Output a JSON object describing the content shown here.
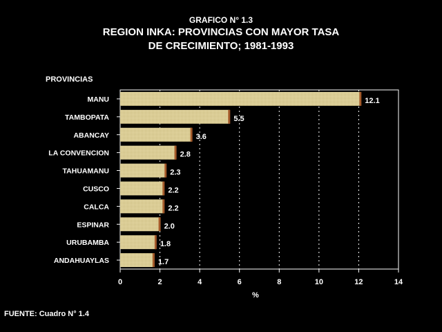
{
  "chart_data": {
    "type": "bar",
    "orientation": "horizontal",
    "title": "GRAFICO N° 1.3",
    "subtitle_line1": "REGION INKA: PROVINCIAS CON MAYOR TASA",
    "subtitle_line2": "DE CRECIMIENTO; 1981-1993",
    "category_axis_title": "PROVINCIAS",
    "xlabel": "%",
    "source": "FUENTE: Cuadro N° 1.4",
    "categories": [
      "MANU",
      "TAMBOPATA",
      "ABANCAY",
      "LA CONVENCION",
      "TAHUAMANU",
      "CUSCO",
      "CALCA",
      "ESPINAR",
      "URUBAMBA",
      "ANDAHUAYLAS"
    ],
    "values": [
      12.1,
      5.5,
      3.6,
      2.8,
      2.3,
      2.2,
      2.2,
      2.0,
      1.8,
      1.7
    ],
    "value_labels": [
      "12.1",
      "5.5",
      "3.6",
      "2.8",
      "2.3",
      "2.2",
      "2.2",
      "2.0",
      "1.8",
      "1.7"
    ],
    "xlim": [
      0,
      14
    ],
    "xticks": [
      0,
      2,
      4,
      6,
      8,
      10,
      12,
      14
    ],
    "grid": "vertical dotted",
    "colors": {
      "background": "#000000",
      "bar_fill": "#e0d29a",
      "bar_shadow": "#a55a2a",
      "text": "#ffffff"
    }
  }
}
